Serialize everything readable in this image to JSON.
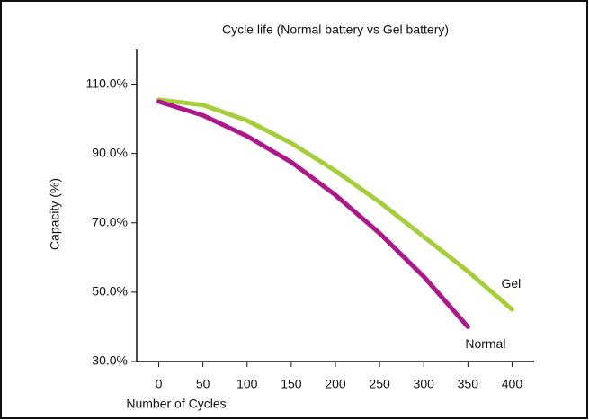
{
  "chart_data": {
    "type": "line",
    "title": "Cycle life (Normal battery vs Gel battery)",
    "x_label": "Number of Cycles",
    "y_label": "Capacity (%)",
    "x": [
      0,
      50,
      100,
      150,
      200,
      250,
      300,
      350,
      400
    ],
    "series": [
      {
        "name": "Gel",
        "color": "#a6ce39",
        "values": [
          105.5,
          104,
          99.5,
          93,
          85,
          76,
          66,
          56,
          45
        ]
      },
      {
        "name": "Normal",
        "color": "#b0168c",
        "values": [
          105,
          101,
          95,
          87.5,
          78,
          67,
          54.5,
          40,
          null
        ]
      }
    ],
    "xlim": [
      -25,
      425
    ],
    "xticks": [
      0,
      50,
      100,
      150,
      200,
      250,
      300,
      350,
      400
    ],
    "ylim": [
      30,
      120
    ],
    "yticks": [
      {
        "value": 30,
        "label": "30.0%"
      },
      {
        "value": 50,
        "label": "50.0%"
      },
      {
        "value": 70,
        "label": "70.0%"
      },
      {
        "value": 90,
        "label": "90.0%"
      },
      {
        "value": 110,
        "label": "110.0%"
      }
    ],
    "grid": false
  }
}
